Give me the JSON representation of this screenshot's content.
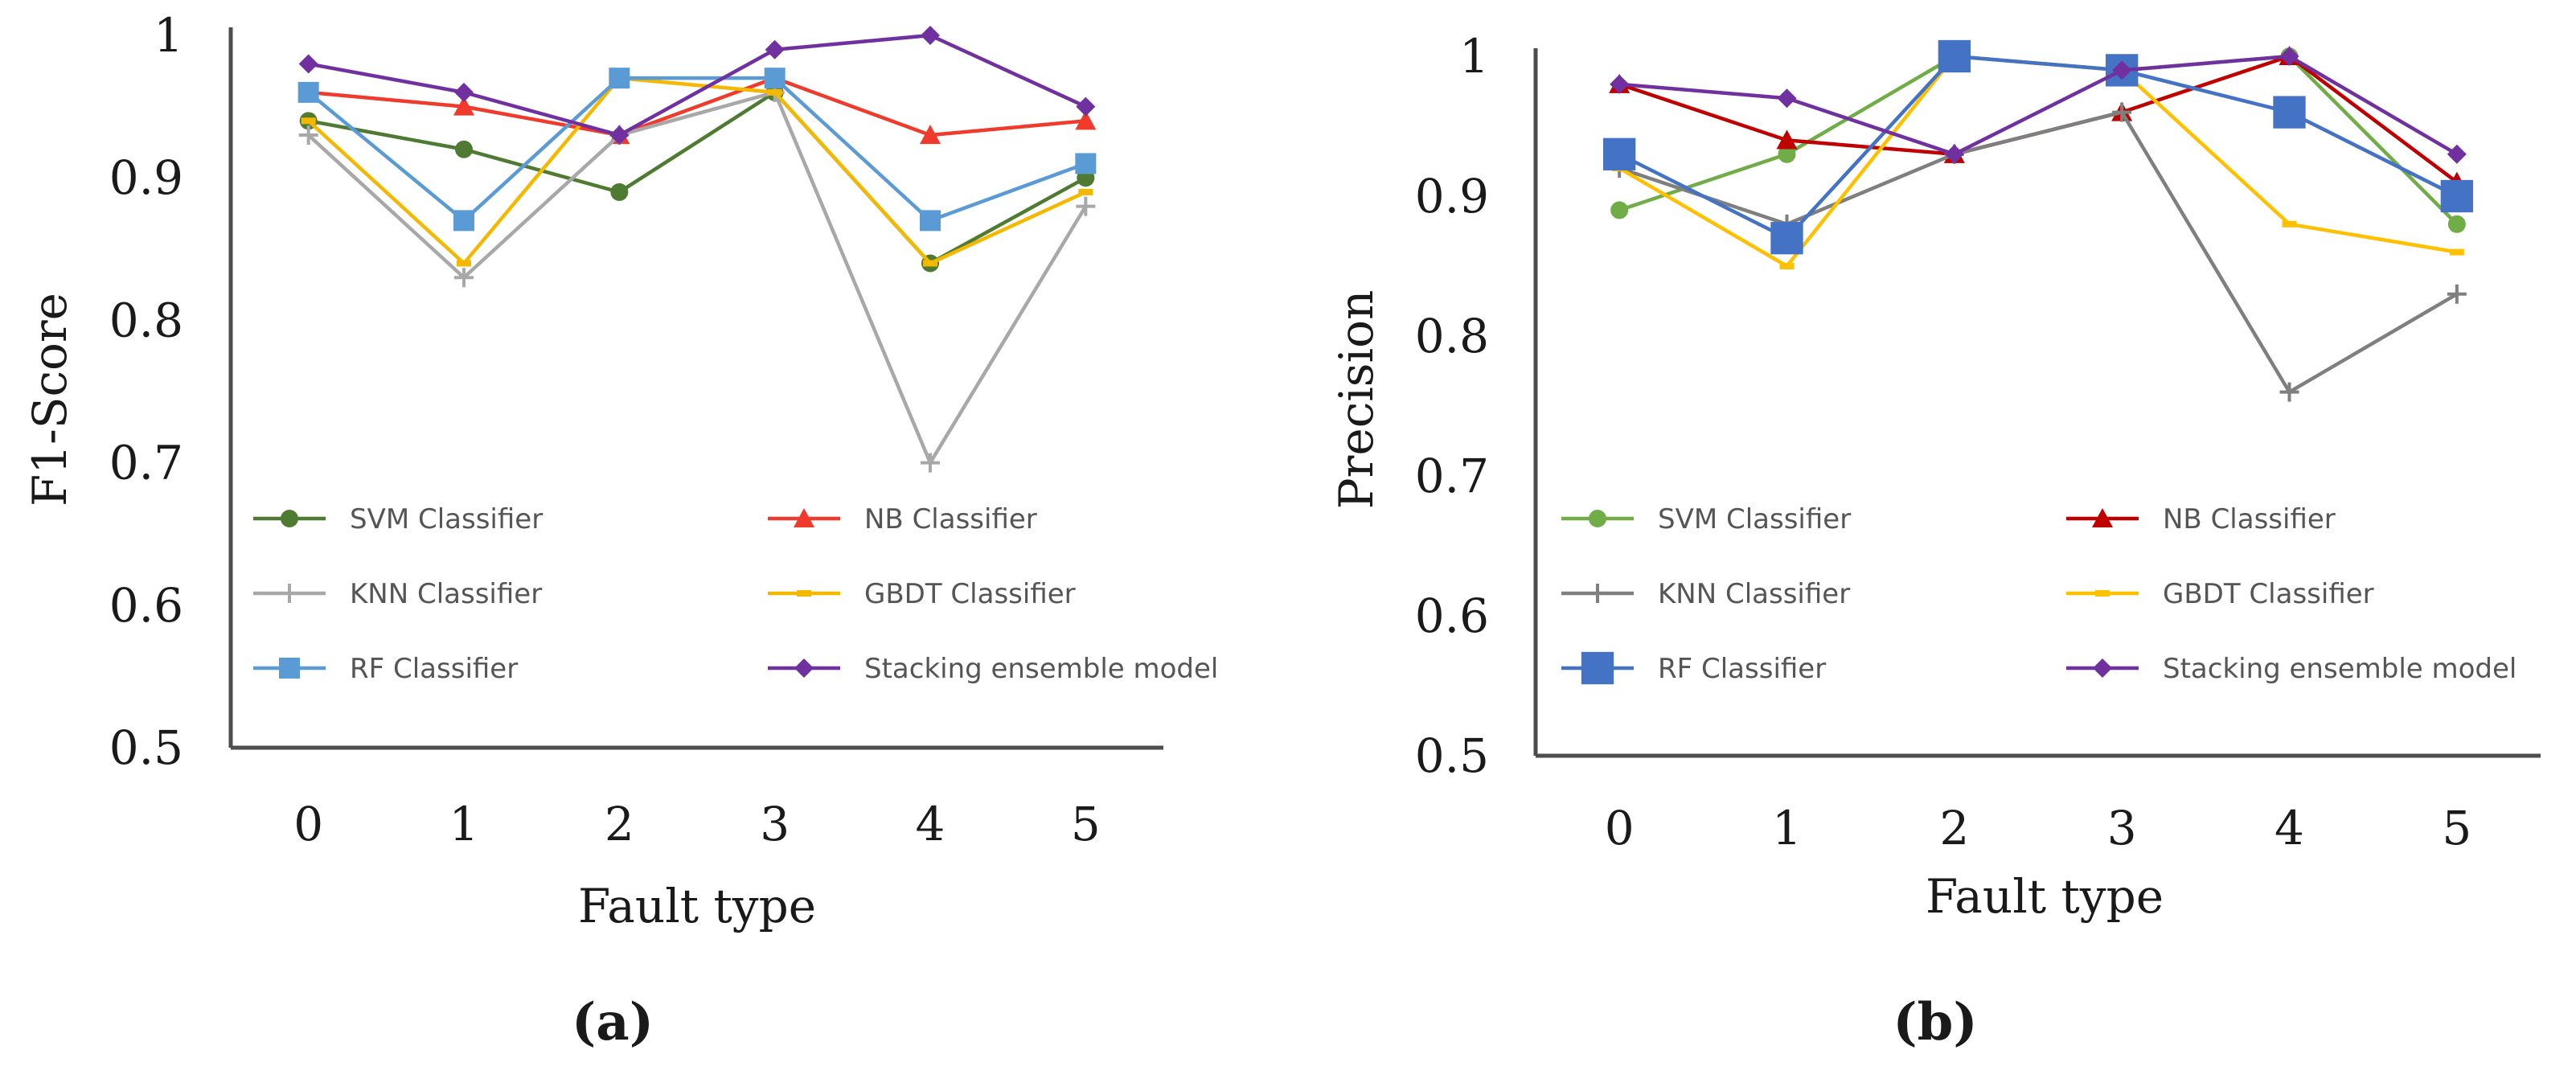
{
  "chart_data": [
    {
      "type": "line",
      "panel_label": "(a)",
      "xlabel": "Fault type",
      "ylabel": "F1-Score",
      "categories": [
        "0",
        "1",
        "2",
        "3",
        "4",
        "5"
      ],
      "ylim": [
        0.5,
        1.0
      ],
      "yticks": [
        "0.5",
        "0.6",
        "0.7",
        "0.8",
        "0.9",
        "1"
      ],
      "grid": false,
      "legend": "inside-bottom, two columns",
      "series": [
        {
          "name": "SVM Classifier",
          "color": "#4e7a32",
          "marker": "circle",
          "values": [
            0.94,
            0.92,
            0.89,
            0.96,
            0.84,
            0.9
          ]
        },
        {
          "name": "NB Classifier",
          "color": "#f03a2b",
          "marker": "triangle",
          "values": [
            0.96,
            0.95,
            0.93,
            0.97,
            0.93,
            0.94
          ]
        },
        {
          "name": "KNN Classifier",
          "color": "#a8a8a8",
          "marker": "plus",
          "values": [
            0.93,
            0.83,
            0.93,
            0.96,
            0.7,
            0.88
          ]
        },
        {
          "name": "GBDT Classifier",
          "color": "#f5b800",
          "marker": "dash",
          "values": [
            0.94,
            0.84,
            0.97,
            0.96,
            0.84,
            0.89
          ]
        },
        {
          "name": "RF Classifier",
          "color": "#5b9bd5",
          "marker": "square",
          "values": [
            0.96,
            0.87,
            0.97,
            0.97,
            0.87,
            0.91
          ]
        },
        {
          "name": "Stacking ensemble model",
          "color": "#7030a0",
          "marker": "diamond",
          "values": [
            0.98,
            0.96,
            0.93,
            0.99,
            1.0,
            0.95
          ]
        }
      ]
    },
    {
      "type": "line",
      "panel_label": "(b)",
      "xlabel": "Fault type",
      "ylabel": "Precision",
      "categories": [
        "0",
        "1",
        "2",
        "3",
        "4",
        "5"
      ],
      "ylim": [
        0.5,
        1.0
      ],
      "yticks": [
        "0.5",
        "0.6",
        "0.7",
        "0.8",
        "0.9",
        "1"
      ],
      "grid": false,
      "legend": "inside-bottom, two columns",
      "series": [
        {
          "name": "SVM Classifier",
          "color": "#70ad47",
          "marker": "circle",
          "values": [
            0.89,
            0.93,
            1.0,
            0.99,
            1.0,
            0.88
          ]
        },
        {
          "name": "NB Classifier",
          "color": "#c00000",
          "marker": "triangle",
          "values": [
            0.98,
            0.94,
            0.93,
            0.96,
            1.0,
            0.91
          ]
        },
        {
          "name": "KNN Classifier",
          "color": "#7f7f7f",
          "marker": "plus",
          "values": [
            0.92,
            0.88,
            0.93,
            0.96,
            0.76,
            0.83
          ]
        },
        {
          "name": "GBDT Classifier",
          "color": "#ffc000",
          "marker": "dash",
          "values": [
            0.92,
            0.85,
            1.0,
            0.99,
            0.88,
            0.86
          ]
        },
        {
          "name": "RF Classifier",
          "color": "#4472c4",
          "marker": "square",
          "values": [
            0.93,
            0.87,
            1.0,
            0.99,
            0.96,
            0.9
          ]
        },
        {
          "name": "Stacking ensemble model",
          "color": "#7030a0",
          "marker": "diamond",
          "values": [
            0.98,
            0.97,
            0.93,
            0.99,
            1.0,
            0.93
          ]
        }
      ]
    }
  ]
}
